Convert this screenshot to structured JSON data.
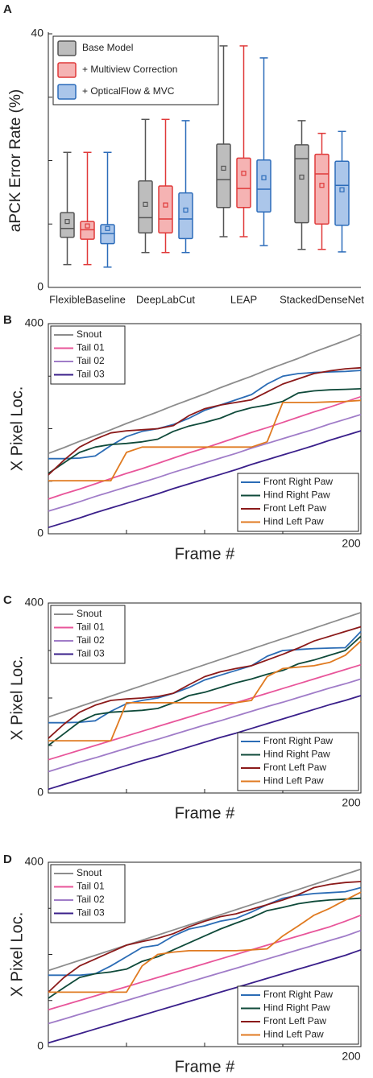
{
  "chart_data": [
    {
      "type": "box",
      "panel": "A",
      "ylabel": "aPCK Error Rate (%)",
      "categories": [
        "FlexibleBaseline",
        "DeepLabCut",
        "LEAP",
        "StackedDenseNet"
      ],
      "ylim": [
        0,
        40
      ],
      "yticks": [
        0,
        40
      ],
      "yminorticks": [
        10,
        20,
        30
      ],
      "legend": "upper left",
      "series": [
        {
          "name": "Base Model",
          "color": "#555555",
          "fill": "#bdbdbd",
          "whisker_low": [
            3.6,
            5.5,
            8,
            6
          ],
          "q1": [
            7.9,
            8.6,
            12.6,
            10.2
          ],
          "median": [
            9.3,
            11,
            17,
            20.3
          ],
          "q3": [
            11.8,
            16.8,
            22.6,
            22.5
          ],
          "whisker_high": [
            21.3,
            26.5,
            38.1,
            26.3
          ],
          "mean": [
            10.4,
            13.1,
            18.8,
            17.4
          ]
        },
        {
          "name": "+ Multiview Correction",
          "color": "#e03a3a",
          "fill": "#f5b3b3",
          "whisker_low": [
            3.6,
            5.5,
            8,
            6
          ],
          "q1": [
            7.6,
            8.6,
            12.6,
            10
          ],
          "median": [
            9.1,
            10.8,
            15.6,
            17.9
          ],
          "q3": [
            10.4,
            16,
            20.4,
            21
          ],
          "whisker_high": [
            21.3,
            26.5,
            38.1,
            24.3
          ],
          "mean": [
            9.7,
            13,
            18,
            16.1
          ]
        },
        {
          "name": "+ OpticalFlow & MVC",
          "color": "#2c6cba",
          "fill": "#abc6ea",
          "whisker_low": [
            3.2,
            5.5,
            6.6,
            5.6
          ],
          "q1": [
            6.9,
            7.7,
            11.9,
            9.8
          ],
          "median": [
            8.5,
            10.8,
            15.5,
            16.1
          ],
          "q3": [
            9.9,
            14.9,
            20.1,
            19.9
          ],
          "whisker_high": [
            21.3,
            26.3,
            36.2,
            24.6
          ],
          "mean": [
            9.3,
            12.2,
            17.3,
            15.4
          ]
        }
      ]
    },
    {
      "type": "line",
      "panel": "B",
      "xlabel": "Frame #",
      "ylabel": "X Pixel Loc.",
      "x": [
        0,
        10,
        20,
        30,
        40,
        50,
        60,
        70,
        80,
        90,
        100,
        110,
        120,
        130,
        140,
        150,
        160,
        170,
        180,
        190,
        200
      ],
      "xlim": [
        0,
        200
      ],
      "xticks": [
        200
      ],
      "xminorticks": [
        50,
        100,
        150
      ],
      "ylim": [
        0,
        400
      ],
      "yticks": [
        0,
        400
      ],
      "yminorticks": [
        100,
        200,
        300
      ],
      "series": [
        {
          "name": "Snout",
          "color": "#8c8c8c",
          "legend": "upper left",
          "values": [
            153,
            164,
            176,
            187,
            198,
            210,
            221,
            232,
            244,
            255,
            266,
            278,
            289,
            300,
            312,
            323,
            334,
            346,
            357,
            368,
            380
          ]
        },
        {
          "name": "Tail 01",
          "color": "#e8559a",
          "legend": "upper left",
          "values": [
            66,
            76,
            85,
            95,
            105,
            115,
            124,
            134,
            144,
            154,
            163,
            173,
            183,
            193,
            202,
            212,
            222,
            232,
            241,
            251,
            261
          ]
        },
        {
          "name": "Tail 02",
          "color": "#a07cc8",
          "legend": "upper left",
          "values": [
            43,
            52,
            61,
            71,
            80,
            89,
            98,
            107,
            117,
            126,
            135,
            144,
            153,
            163,
            172,
            181,
            190,
            199,
            209,
            218,
            227
          ]
        },
        {
          "name": "Tail 03",
          "color": "#3a1f8a",
          "legend": "upper left",
          "values": [
            12,
            21,
            30,
            40,
            49,
            58,
            67,
            76,
            86,
            95,
            104,
            113,
            122,
            132,
            141,
            150,
            159,
            168,
            178,
            187,
            196
          ]
        },
        {
          "name": "Front Right Paw",
          "color": "#2b6cb5",
          "legend": "lower right",
          "values": [
            143,
            143,
            144,
            148,
            168,
            185,
            195,
            200,
            208,
            220,
            235,
            245,
            255,
            265,
            285,
            300,
            305,
            307,
            308,
            309,
            311
          ]
        },
        {
          "name": "Hind Right Paw",
          "color": "#0f4a3a",
          "legend": "lower right",
          "values": [
            115,
            135,
            155,
            165,
            170,
            172,
            175,
            180,
            195,
            205,
            212,
            220,
            232,
            240,
            245,
            252,
            268,
            272,
            274,
            275,
            276
          ]
        },
        {
          "name": "Front Left Paw",
          "color": "#8b1a1a",
          "legend": "lower right",
          "values": [
            112,
            140,
            165,
            180,
            192,
            196,
            198,
            200,
            206,
            225,
            238,
            245,
            250,
            255,
            270,
            285,
            295,
            305,
            310,
            314,
            316
          ]
        },
        {
          "name": "Hind Left Paw",
          "color": "#e07a20",
          "legend": "lower right",
          "values": [
            101,
            101,
            101,
            101,
            101,
            155,
            165,
            165,
            165,
            165,
            165,
            165,
            165,
            165,
            175,
            250,
            250,
            250,
            251,
            252,
            254
          ]
        }
      ]
    },
    {
      "type": "line",
      "panel": "C",
      "xlabel": "Frame #",
      "ylabel": "X Pixel Loc.",
      "x": [
        0,
        10,
        20,
        30,
        40,
        50,
        60,
        70,
        80,
        90,
        100,
        110,
        120,
        130,
        140,
        150,
        160,
        170,
        180,
        190,
        200
      ],
      "xlim": [
        0,
        200
      ],
      "xticks": [
        200
      ],
      "xminorticks": [
        50,
        100,
        150
      ],
      "ylim": [
        0,
        400
      ],
      "yticks": [
        0,
        400
      ],
      "yminorticks": [
        100,
        200,
        300
      ],
      "series": [
        {
          "name": "Snout",
          "color": "#8c8c8c",
          "legend": "upper left",
          "values": [
            160,
            171,
            182,
            193,
            204,
            215,
            226,
            237,
            248,
            259,
            270,
            281,
            292,
            303,
            314,
            325,
            336,
            347,
            358,
            369,
            380
          ]
        },
        {
          "name": "Tail 01",
          "color": "#e8559a",
          "legend": "upper left",
          "values": [
            70,
            80,
            90,
            100,
            110,
            120,
            130,
            140,
            150,
            160,
            170,
            180,
            190,
            200,
            210,
            220,
            230,
            240,
            250,
            260,
            270
          ]
        },
        {
          "name": "Tail 02",
          "color": "#a07cc8",
          "legend": "upper left",
          "values": [
            45,
            55,
            65,
            74,
            84,
            94,
            104,
            113,
            123,
            133,
            143,
            152,
            162,
            172,
            182,
            191,
            201,
            211,
            221,
            230,
            240
          ]
        },
        {
          "name": "Tail 03",
          "color": "#3a1f8a",
          "legend": "upper left",
          "values": [
            8,
            18,
            28,
            38,
            48,
            58,
            68,
            77,
            87,
            97,
            107,
            117,
            126,
            136,
            146,
            156,
            166,
            176,
            186,
            195,
            205
          ]
        },
        {
          "name": "Front Right Paw",
          "color": "#2b6cb5",
          "legend": "lower right",
          "values": [
            148,
            148,
            149,
            152,
            172,
            188,
            195,
            200,
            210,
            222,
            238,
            248,
            258,
            268,
            288,
            300,
            302,
            304,
            305,
            306,
            340
          ]
        },
        {
          "name": "Hind Right Paw",
          "color": "#0f4a3a",
          "legend": "lower right",
          "values": [
            100,
            125,
            150,
            165,
            170,
            172,
            174,
            178,
            190,
            205,
            212,
            222,
            232,
            240,
            250,
            258,
            272,
            280,
            290,
            300,
            330
          ]
        },
        {
          "name": "Front Left Paw",
          "color": "#8b1a1a",
          "legend": "lower right",
          "values": [
            115,
            145,
            170,
            185,
            195,
            198,
            200,
            203,
            210,
            228,
            245,
            255,
            262,
            268,
            280,
            292,
            305,
            320,
            330,
            340,
            350
          ]
        },
        {
          "name": "Hind Left Paw",
          "color": "#e07a20",
          "legend": "lower right",
          "values": [
            110,
            110,
            110,
            110,
            110,
            190,
            190,
            190,
            190,
            190,
            190,
            190,
            190,
            195,
            245,
            262,
            265,
            268,
            275,
            290,
            320
          ]
        }
      ]
    },
    {
      "type": "line",
      "panel": "D",
      "xlabel": "Frame #",
      "ylabel": "X Pixel Loc.",
      "x": [
        0,
        10,
        20,
        30,
        40,
        50,
        60,
        70,
        80,
        90,
        100,
        110,
        120,
        130,
        140,
        150,
        160,
        170,
        180,
        190,
        200
      ],
      "xlim": [
        0,
        200
      ],
      "xticks": [
        200
      ],
      "xminorticks": [
        50,
        100,
        150
      ],
      "ylim": [
        0,
        400
      ],
      "yticks": [
        0,
        400
      ],
      "yminorticks": [
        100,
        200,
        300
      ],
      "series": [
        {
          "name": "Snout",
          "color": "#8c8c8c",
          "legend": "upper left",
          "values": [
            165,
            176,
            187,
            198,
            209,
            220,
            231,
            242,
            253,
            264,
            275,
            286,
            297,
            308,
            319,
            330,
            341,
            352,
            363,
            374,
            385
          ]
        },
        {
          "name": "Tail 01",
          "color": "#e8559a",
          "legend": "upper left",
          "values": [
            80,
            90,
            100,
            110,
            120,
            130,
            140,
            150,
            160,
            170,
            180,
            190,
            200,
            210,
            220,
            230,
            240,
            250,
            260,
            272,
            285
          ]
        },
        {
          "name": "Tail 02",
          "color": "#a07cc8",
          "legend": "upper left",
          "values": [
            50,
            60,
            70,
            80,
            90,
            100,
            110,
            120,
            130,
            140,
            150,
            160,
            170,
            180,
            190,
            200,
            210,
            220,
            230,
            240,
            252
          ]
        },
        {
          "name": "Tail 03",
          "color": "#3a1f8a",
          "legend": "upper left",
          "values": [
            8,
            18,
            28,
            38,
            48,
            58,
            68,
            78,
            88,
            98,
            108,
            118,
            128,
            138,
            148,
            158,
            168,
            178,
            188,
            198,
            210
          ]
        },
        {
          "name": "Front Right Paw",
          "color": "#2b6cb5",
          "legend": "lower right",
          "values": [
            155,
            155,
            155,
            158,
            175,
            195,
            215,
            220,
            240,
            255,
            262,
            272,
            278,
            292,
            308,
            322,
            328,
            332,
            334,
            336,
            345
          ]
        },
        {
          "name": "Hind Right Paw",
          "color": "#0f4a3a",
          "legend": "lower right",
          "values": [
            105,
            128,
            150,
            158,
            162,
            168,
            185,
            195,
            210,
            225,
            240,
            255,
            268,
            280,
            295,
            302,
            310,
            315,
            318,
            320,
            322
          ]
        },
        {
          "name": "Front Left Paw",
          "color": "#8b1a1a",
          "legend": "lower right",
          "values": [
            118,
            150,
            175,
            190,
            205,
            220,
            228,
            235,
            245,
            260,
            272,
            282,
            288,
            298,
            308,
            318,
            330,
            345,
            352,
            356,
            358
          ]
        },
        {
          "name": "Hind Left Paw",
          "color": "#e07a20",
          "legend": "lower right",
          "values": [
            118,
            118,
            118,
            118,
            118,
            118,
            175,
            200,
            205,
            208,
            208,
            208,
            208,
            210,
            212,
            240,
            262,
            285,
            300,
            318,
            335
          ]
        }
      ]
    }
  ]
}
